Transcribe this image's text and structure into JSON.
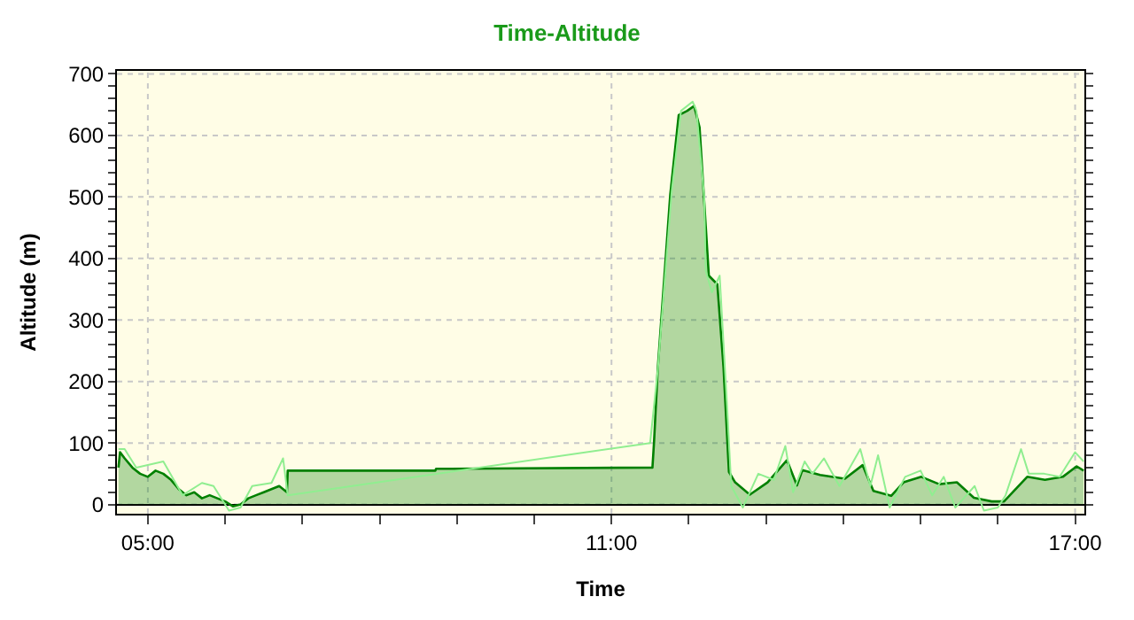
{
  "chart_data": {
    "type": "area",
    "title": "Time-Altitude",
    "xlabel": "Time",
    "ylabel": "Altitude (m)",
    "xlim": [
      4.6,
      17.12
    ],
    "xticks": [
      {
        "value": 5,
        "label": "05:00"
      },
      {
        "value": 6,
        "label": null
      },
      {
        "value": 7,
        "label": null
      },
      {
        "value": 8,
        "label": null
      },
      {
        "value": 9,
        "label": null
      },
      {
        "value": 10,
        "label": null
      },
      {
        "value": 11,
        "label": "11:00"
      },
      {
        "value": 12,
        "label": null
      },
      {
        "value": 13,
        "label": null
      },
      {
        "value": 14,
        "label": null
      },
      {
        "value": 15,
        "label": null
      },
      {
        "value": 16,
        "label": null
      },
      {
        "value": 17,
        "label": "17:00"
      }
    ],
    "ylim": [
      -15,
      705
    ],
    "yticks": [
      0,
      {
        "value": 20,
        "label": null
      },
      {
        "value": 40,
        "label": null
      },
      {
        "value": 60,
        "label": null
      },
      {
        "value": 80,
        "label": null
      },
      100,
      {
        "value": 120,
        "label": null
      },
      {
        "value": 140,
        "label": null
      },
      {
        "value": 160,
        "label": null
      },
      {
        "value": 180,
        "label": null
      },
      200,
      {
        "value": 220,
        "label": null
      },
      {
        "value": 240,
        "label": null
      },
      {
        "value": 260,
        "label": null
      },
      {
        "value": 280,
        "label": null
      },
      300,
      {
        "value": 320,
        "label": null
      },
      {
        "value": 340,
        "label": null
      },
      {
        "value": 360,
        "label": null
      },
      {
        "value": 380,
        "label": null
      },
      400,
      {
        "value": 420,
        "label": null
      },
      {
        "value": 440,
        "label": null
      },
      {
        "value": 460,
        "label": null
      },
      {
        "value": 480,
        "label": null
      },
      500,
      {
        "value": 520,
        "label": null
      },
      {
        "value": 540,
        "label": null
      },
      {
        "value": 560,
        "label": null
      },
      {
        "value": 580,
        "label": null
      },
      600,
      {
        "value": 620,
        "label": null
      },
      {
        "value": 640,
        "label": null
      },
      {
        "value": 660,
        "label": null
      },
      {
        "value": 680,
        "label": null
      },
      700
    ],
    "grid": true,
    "series": [
      {
        "color": "#008000",
        "x": [
          4.62,
          4.64,
          4.7,
          4.8,
          4.9,
          5.0,
          5.1,
          5.2,
          5.3,
          5.4,
          5.5,
          5.6,
          5.7,
          5.8,
          5.9,
          6.0,
          6.1,
          6.2,
          6.3,
          6.4,
          6.5,
          6.6,
          6.7,
          6.8,
          6.81,
          8.72,
          8.73,
          11.53,
          11.55,
          11.6,
          11.76,
          11.87,
          11.98,
          12.07,
          12.14,
          12.26,
          12.37,
          12.45,
          12.52,
          12.6,
          12.79,
          13.02,
          13.27,
          13.4,
          13.47,
          13.7,
          14.02,
          14.25,
          14.39,
          14.62,
          14.78,
          15.01,
          15.24,
          15.47,
          15.69,
          15.92,
          16.08,
          16.38,
          16.61,
          16.84,
          17.02,
          17.11
        ],
        "values": [
          60,
          85,
          75,
          60,
          50,
          45,
          55,
          50,
          40,
          25,
          15,
          20,
          10,
          15,
          10,
          5,
          -3,
          0,
          10,
          15,
          20,
          25,
          30,
          20,
          55,
          55,
          58,
          60,
          100,
          223,
          503,
          633,
          640,
          648,
          613,
          372,
          358,
          223,
          53,
          36,
          16,
          36,
          72,
          31,
          56,
          48,
          42,
          64,
          22,
          14,
          36,
          45,
          33,
          36,
          11,
          5,
          5,
          45,
          40,
          45,
          62,
          55
        ]
      },
      {
        "type": "line",
        "color": "#90ee90",
        "x": [
          4.62,
          4.7,
          4.85,
          5.2,
          5.45,
          5.7,
          5.85,
          6.05,
          6.2,
          6.35,
          6.6,
          6.75,
          6.81,
          11.5,
          11.6,
          11.78,
          11.9,
          12.05,
          12.1,
          12.2,
          12.22,
          12.3,
          12.4,
          12.5,
          12.55,
          12.7,
          12.9,
          13.1,
          13.25,
          13.35,
          13.5,
          13.6,
          13.75,
          13.95,
          14.22,
          14.35,
          14.45,
          14.6,
          14.8,
          15.0,
          15.15,
          15.3,
          15.45,
          15.7,
          15.82,
          16.0,
          16.1,
          16.3,
          16.4,
          16.6,
          16.8,
          17.0,
          17.11
        ],
        "values": [
          90,
          90,
          60,
          70,
          15,
          35,
          30,
          -10,
          -5,
          30,
          35,
          75,
          15,
          100,
          220,
          510,
          640,
          655,
          640,
          500,
          380,
          345,
          372,
          150,
          30,
          -5,
          50,
          40,
          95,
          20,
          70,
          50,
          75,
          30,
          90,
          30,
          80,
          -5,
          45,
          55,
          15,
          45,
          -5,
          30,
          -10,
          -5,
          15,
          90,
          50,
          50,
          45,
          85,
          70
        ]
      }
    ]
  }
}
